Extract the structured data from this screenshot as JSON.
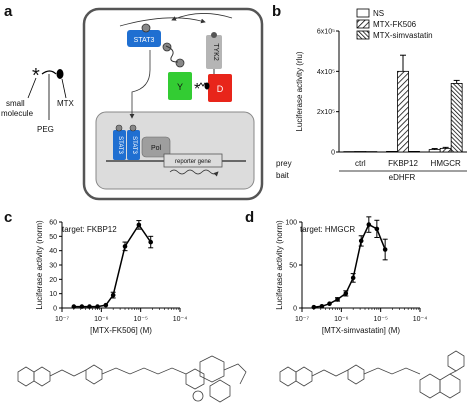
{
  "panels": {
    "a": {
      "label": "a",
      "molecule_labels": {
        "small_molecule": "small\nmolecule",
        "peg": "PEG",
        "mtx": "MTX"
      },
      "nodes": {
        "stat3": "STAT3",
        "tyk2": "TYK2",
        "y": "Y",
        "d": "D",
        "pol": "Pol",
        "reporter": "reporter gene"
      },
      "colors": {
        "stat3": "#1f6fd1",
        "y": "#33cc33",
        "d": "#e8251a",
        "tyk2": "#b5b5b5",
        "box": "#dcdcdc"
      }
    },
    "b": {
      "label": "b",
      "row_labels": {
        "prey": "prey",
        "bait": "bait"
      },
      "prey_groups": [
        "ctrl",
        "FKBP12",
        "HMGCR"
      ],
      "bait_label": "eDHFR"
    },
    "c": {
      "label": "c",
      "annotation": "target: FKBP12"
    },
    "d": {
      "label": "d",
      "annotation": "target: HMGCR"
    }
  },
  "chart_data": [
    {
      "id": "b",
      "type": "bar",
      "ylabel": "Luciferase activity (rlu)",
      "ylim": [
        0,
        600000
      ],
      "yticks": [
        "0",
        "2x10⁵",
        "4x10⁵",
        "6x10⁵"
      ],
      "categories": [
        "ctrl",
        "FKBP12",
        "HMGCR"
      ],
      "legend_position": "top-right",
      "series": [
        {
          "name": "NS",
          "pattern": "white",
          "values": [
            2000,
            3000,
            12000
          ],
          "errors": [
            500,
            500,
            5000
          ]
        },
        {
          "name": "MTX-FK506",
          "pattern": "diagonal",
          "values": [
            2500,
            400000,
            18000
          ],
          "errors": [
            500,
            80000,
            5000
          ]
        },
        {
          "name": "MTX-simvastatin",
          "pattern": "diagonal-dense",
          "values": [
            2000,
            3000,
            340000
          ],
          "errors": [
            500,
            500,
            15000
          ]
        }
      ]
    },
    {
      "id": "c",
      "type": "line",
      "ylabel": "Luciferase activity (norm)",
      "xlabel": "[MTX-FK506] (M)",
      "xscale": "log",
      "xlim": [
        1e-07,
        0.0001
      ],
      "ylim": [
        0,
        60
      ],
      "yticks": [
        0,
        10,
        20,
        30,
        40,
        50,
        60
      ],
      "xticks": [
        "10⁻⁷",
        "10⁻⁶",
        "10⁻⁵",
        "10⁻⁴"
      ],
      "x": [
        2e-07,
        3.2e-07,
        5e-07,
        8e-07,
        1.3e-06,
        2e-06,
        4e-06,
        9e-06,
        1.8e-05
      ],
      "y": [
        1,
        1,
        1,
        1,
        2,
        9,
        43,
        58,
        46
      ],
      "errors": [
        0.5,
        0.5,
        0.5,
        0.5,
        0.8,
        2,
        3,
        3,
        4
      ]
    },
    {
      "id": "d",
      "type": "line",
      "ylabel": "Luciferase activity (norm)",
      "xlabel": "[MTX-simvastatin] (M)",
      "xscale": "log",
      "xlim": [
        1e-07,
        0.0001
      ],
      "ylim": [
        0,
        100
      ],
      "yticks": [
        0,
        50,
        100
      ],
      "xticks": [
        "10⁻⁷",
        "10⁻⁶",
        "10⁻⁵",
        "10⁻⁴"
      ],
      "x": [
        2e-07,
        3.2e-07,
        5e-07,
        8e-07,
        1.3e-06,
        2e-06,
        3.2e-06,
        5e-06,
        8e-06,
        1.3e-05
      ],
      "y": [
        1,
        2,
        5,
        10,
        17,
        35,
        78,
        97,
        92,
        68
      ],
      "errors": [
        0.5,
        0.8,
        1,
        2,
        3,
        5,
        6,
        9,
        10,
        12
      ]
    }
  ]
}
